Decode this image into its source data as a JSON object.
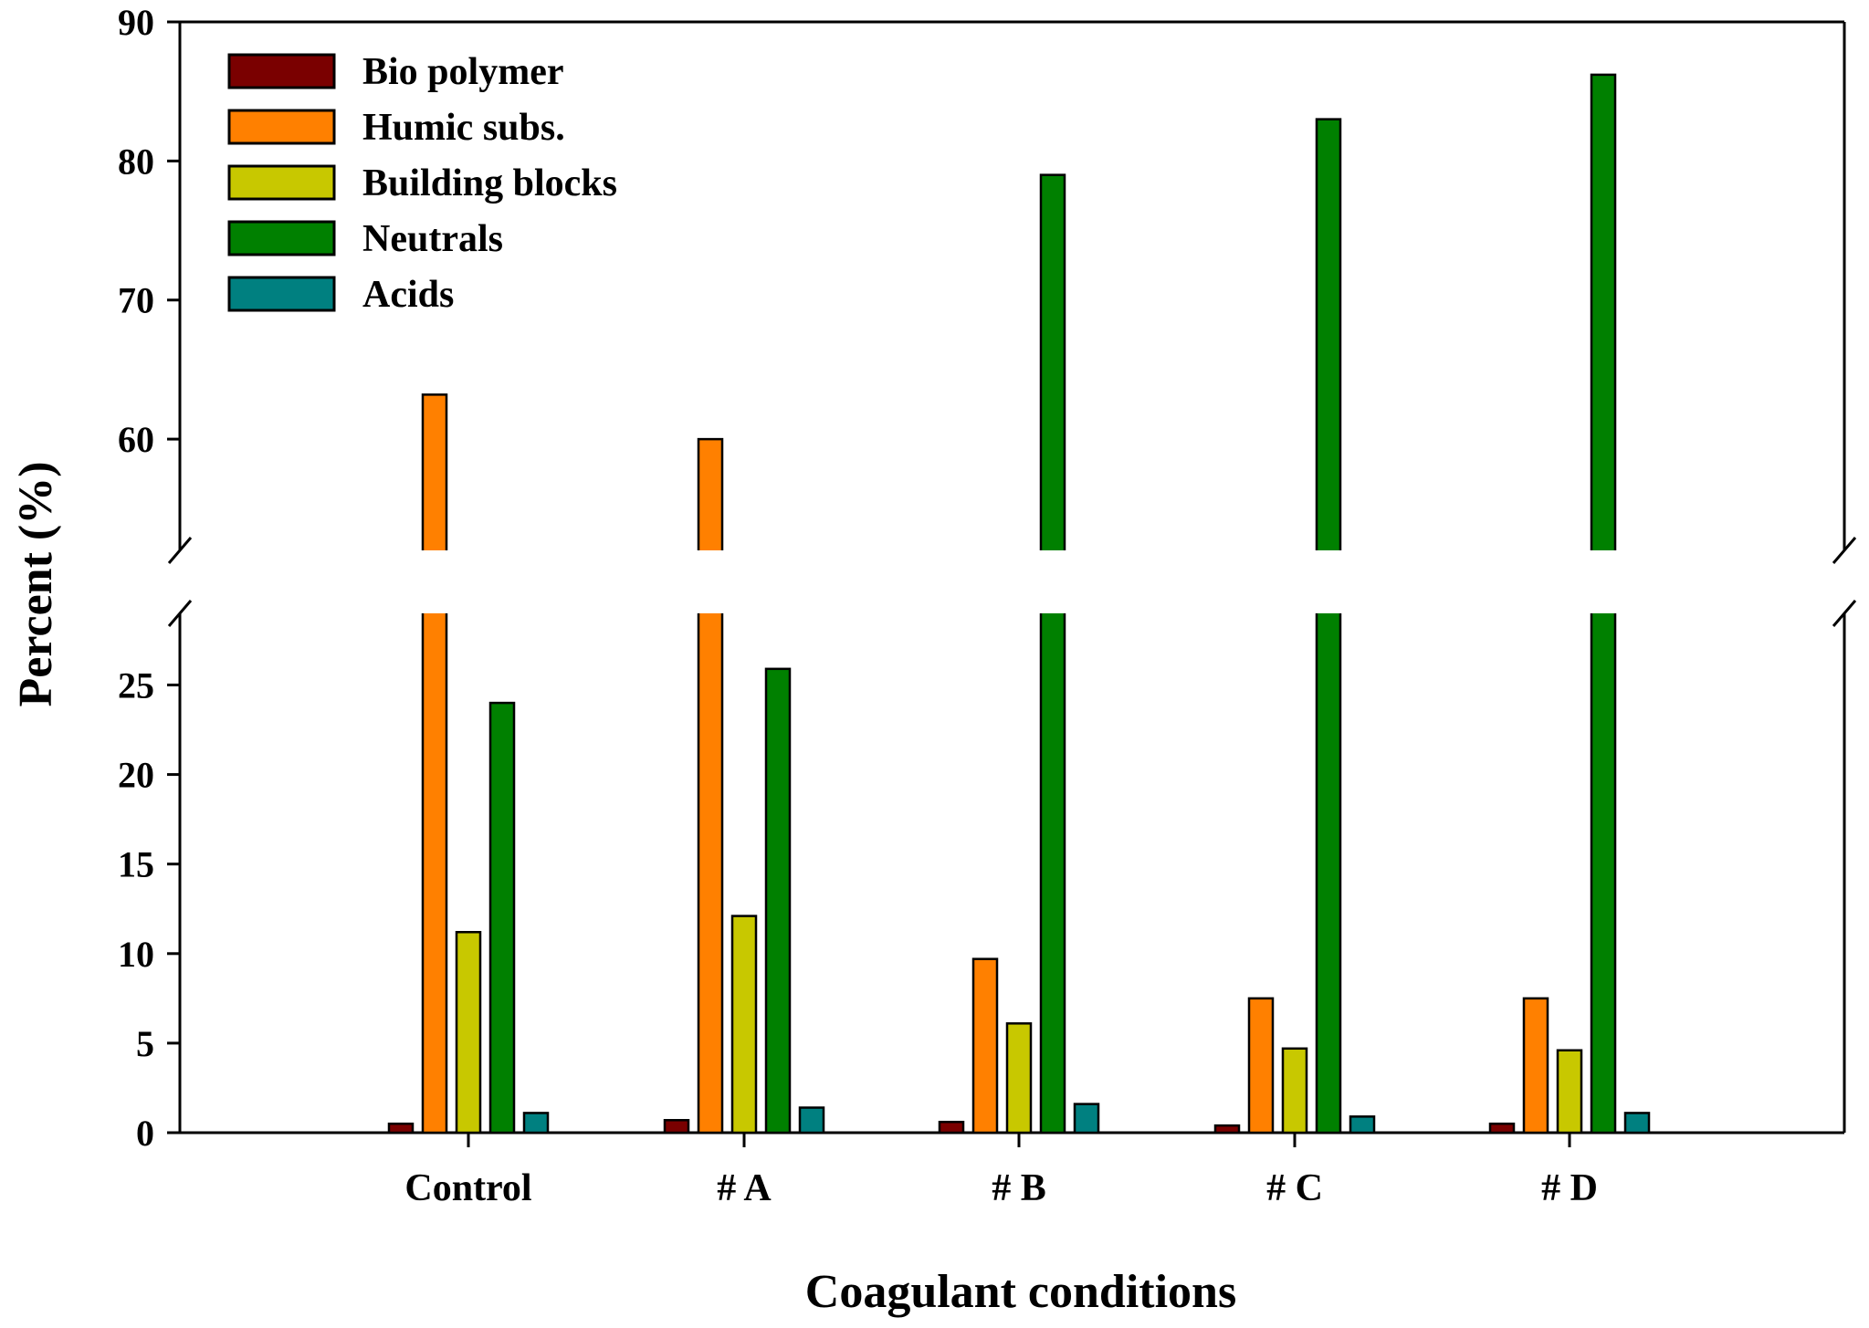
{
  "chart_data": {
    "type": "bar",
    "title": "",
    "xlabel": "Coagulant conditions",
    "ylabel": "Percent (%)",
    "categories": [
      "Control",
      "# A",
      "# B",
      "# C",
      "# D"
    ],
    "series": [
      {
        "name": "Bio polymer",
        "color": "#7a0000",
        "values": [
          0.5,
          0.7,
          0.6,
          0.4,
          0.5
        ]
      },
      {
        "name": "Humic subs.",
        "color": "#ff8000",
        "values": [
          63.2,
          60.0,
          9.7,
          7.5,
          7.5
        ]
      },
      {
        "name": "Building blocks",
        "color": "#c8c800",
        "values": [
          11.2,
          12.1,
          6.1,
          4.7,
          4.6
        ]
      },
      {
        "name": "Neutrals",
        "color": "#008000",
        "values": [
          24.0,
          25.9,
          79.0,
          83.0,
          86.2
        ]
      },
      {
        "name": "Acids",
        "color": "#008080",
        "values": [
          1.1,
          1.4,
          1.6,
          0.9,
          1.1
        ]
      }
    ],
    "axis_break": {
      "lower_range": [
        0,
        29
      ],
      "upper_range": [
        52,
        90
      ]
    },
    "lower_ticks": [
      0,
      5,
      10,
      15,
      20,
      25
    ],
    "upper_ticks": [
      60,
      70,
      80,
      90
    ],
    "legend_position": "top-left",
    "grid": false
  }
}
